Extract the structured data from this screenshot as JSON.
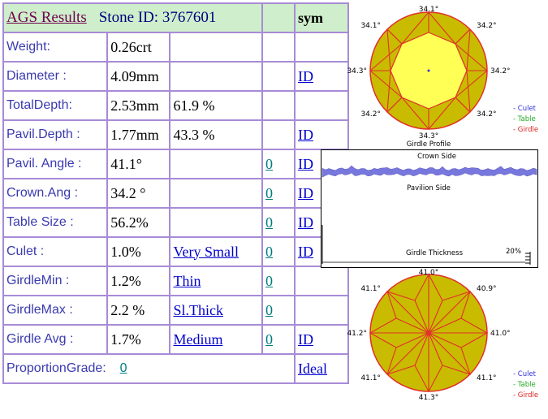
{
  "header": {
    "title": "AGS  Results",
    "stone_id": "Stone ID:  3767601",
    "sym": "sym"
  },
  "rows": [
    {
      "label": "Weight:",
      "value": "0.26crt",
      "extra": "",
      "grade": "",
      "sym": ""
    },
    {
      "label": "Diameter :",
      "value": "4.09mm",
      "extra": "",
      "grade": "",
      "sym": "ID"
    },
    {
      "label": "TotalDepth:",
      "value": "2.53mm",
      "extra": "61.9 %",
      "grade": "",
      "sym": ""
    },
    {
      "label": "Pavil.Depth :",
      "value": "1.77mm",
      "extra": "43.3 %",
      "grade": "",
      "sym": "ID"
    },
    {
      "label": "Pavil. Angle :",
      "value": "41.1°",
      "extra": "",
      "grade": "0",
      "sym": "ID "
    },
    {
      "label": "Crown.Ang :",
      "value": "34.2 °",
      "extra": "",
      "grade": "0",
      "sym": "ID"
    },
    {
      "label": "Table Size :",
      "value": "56.2%",
      "extra": "",
      "grade": "0",
      "sym": "ID"
    },
    {
      "label": "Culet :",
      "value": "1.0%",
      "extra": "Very Small",
      "grade": "0",
      "sym": "ID"
    },
    {
      "label": "GirdleMin :",
      "value": "1.2%",
      "extra": "Thin",
      "grade": "0",
      "sym": ""
    },
    {
      "label": "GirdleMax :",
      "value": "2.2 %",
      "extra": "Sl.Thick ",
      "grade": "0",
      "sym": ""
    },
    {
      "label": "Girdle Avg :",
      "value": "1.7%",
      "extra": "Medium ",
      "grade": "0 ",
      "sym": "ID"
    }
  ],
  "proportion": {
    "label": "ProportionGrade:",
    "grade": "0",
    "result": "Ideal "
  },
  "crown_diagram": {
    "angles": [
      "34.1°",
      "34.2°",
      "34.2°",
      "34.2°",
      "34.3°",
      "34.2°",
      "34.3°",
      "34.1°"
    ],
    "legend": [
      "- Culet",
      "- Table",
      "- Girdle"
    ],
    "colors": {
      "fill": "#c9bb00",
      "table": "#ffff55",
      "lines": "#e0302a",
      "culet": "#3333dd",
      "table_legend": "#22aa22",
      "girdle_legend": "#dd2222"
    }
  },
  "profile": {
    "title": "Girdle Profile",
    "crown_side": "Crown Side",
    "pavilion_side": "Pavilion Side",
    "thickness_label": "Girdle Thickness",
    "percent": "20%",
    "band_color": "#7777dd"
  },
  "pavilion_diagram": {
    "angles": [
      "41.0°",
      "40.9°",
      "41.0°",
      "41.1°",
      "41.3°",
      "41.1°",
      "41.2°",
      "41.1°"
    ],
    "legend": [
      "- Culet",
      "- Table",
      "- Girdle"
    ]
  }
}
